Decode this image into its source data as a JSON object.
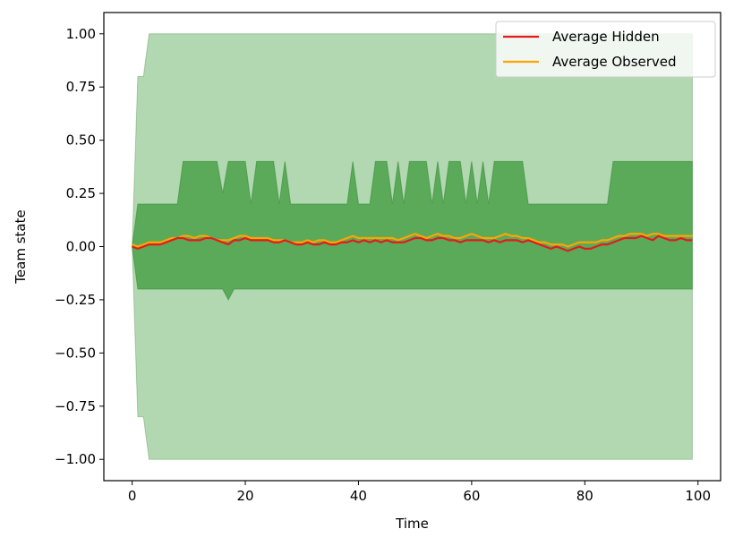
{
  "chart_data": {
    "type": "line",
    "title": "",
    "xlabel": "Time",
    "ylabel": "Team state",
    "xlim": [
      -5,
      104
    ],
    "ylim": [
      -1.1,
      1.1
    ],
    "xticks": [
      0,
      20,
      40,
      60,
      80,
      100
    ],
    "xtick_labels": [
      "0",
      "20",
      "40",
      "60",
      "80",
      "100"
    ],
    "yticks": [
      1.0,
      0.75,
      0.5,
      0.25,
      0.0,
      -0.25,
      -0.5,
      -0.75,
      -1.0
    ],
    "ytick_labels": [
      "1.00",
      "0.75",
      "0.50",
      "0.25",
      "0.00",
      "−0.25",
      "−0.50",
      "−0.75",
      "−1.00"
    ],
    "grid": false,
    "legend_position": "top-right",
    "colors": {
      "hidden": "#e41a1c",
      "observed": "#ffa500",
      "outer_band": "#b2d8b2",
      "inner_band": "#5aaa5a",
      "band_edge": "#3a8a3a"
    },
    "bands": [
      {
        "role": "outer",
        "x": [
          0,
          1,
          2,
          3,
          4,
          99
        ],
        "upper": [
          0.0,
          0.8,
          0.8,
          1.0,
          1.0,
          1.0
        ],
        "lower": [
          0.0,
          -0.8,
          -0.8,
          -1.0,
          -1.0,
          -1.0
        ]
      },
      {
        "role": "inner",
        "x": [
          0,
          1,
          2,
          3,
          4,
          5,
          6,
          7,
          8,
          9,
          10,
          11,
          12,
          13,
          14,
          15,
          16,
          17,
          18,
          19,
          20,
          21,
          22,
          23,
          24,
          25,
          26,
          27,
          28,
          29,
          30,
          31,
          32,
          33,
          34,
          35,
          36,
          37,
          38,
          39,
          40,
          41,
          42,
          43,
          44,
          45,
          46,
          47,
          48,
          49,
          50,
          51,
          52,
          53,
          54,
          55,
          56,
          57,
          58,
          59,
          60,
          61,
          62,
          63,
          64,
          65,
          66,
          67,
          68,
          69,
          70,
          71,
          72,
          73,
          74,
          75,
          76,
          77,
          78,
          79,
          80,
          81,
          82,
          83,
          84,
          85,
          86,
          87,
          88,
          89,
          90,
          91,
          92,
          93,
          94,
          95,
          96,
          97,
          98,
          99
        ],
        "upper": [
          0.0,
          0.2,
          0.2,
          0.2,
          0.2,
          0.2,
          0.2,
          0.2,
          0.2,
          0.4,
          0.4,
          0.4,
          0.4,
          0.4,
          0.4,
          0.4,
          0.25,
          0.4,
          0.4,
          0.4,
          0.4,
          0.2,
          0.4,
          0.4,
          0.4,
          0.4,
          0.2,
          0.4,
          0.2,
          0.2,
          0.2,
          0.2,
          0.2,
          0.2,
          0.2,
          0.2,
          0.2,
          0.2,
          0.2,
          0.4,
          0.2,
          0.2,
          0.2,
          0.4,
          0.4,
          0.4,
          0.2,
          0.4,
          0.2,
          0.4,
          0.4,
          0.4,
          0.4,
          0.2,
          0.4,
          0.2,
          0.4,
          0.4,
          0.4,
          0.2,
          0.4,
          0.2,
          0.4,
          0.2,
          0.4,
          0.4,
          0.4,
          0.4,
          0.4,
          0.4,
          0.2,
          0.2,
          0.2,
          0.2,
          0.2,
          0.2,
          0.2,
          0.2,
          0.2,
          0.2,
          0.2,
          0.2,
          0.2,
          0.2,
          0.2,
          0.4,
          0.4,
          0.4,
          0.4,
          0.4,
          0.4,
          0.4,
          0.4,
          0.4,
          0.4,
          0.4,
          0.4,
          0.4,
          0.4,
          0.4
        ],
        "lower": [
          0.0,
          -0.2,
          -0.2,
          -0.2,
          -0.2,
          -0.2,
          -0.2,
          -0.2,
          -0.2,
          -0.2,
          -0.2,
          -0.2,
          -0.2,
          -0.2,
          -0.2,
          -0.2,
          -0.2,
          -0.25,
          -0.2,
          -0.2,
          -0.2,
          -0.2,
          -0.2,
          -0.2,
          -0.2,
          -0.2,
          -0.2,
          -0.2,
          -0.2,
          -0.2,
          -0.2,
          -0.2,
          -0.2,
          -0.2,
          -0.2,
          -0.2,
          -0.2,
          -0.2,
          -0.2,
          -0.2,
          -0.2,
          -0.2,
          -0.2,
          -0.2,
          -0.2,
          -0.2,
          -0.2,
          -0.2,
          -0.2,
          -0.2,
          -0.2,
          -0.2,
          -0.2,
          -0.2,
          -0.2,
          -0.2,
          -0.2,
          -0.2,
          -0.2,
          -0.2,
          -0.2,
          -0.2,
          -0.2,
          -0.2,
          -0.2,
          -0.2,
          -0.2,
          -0.2,
          -0.2,
          -0.2,
          -0.2,
          -0.2,
          -0.2,
          -0.2,
          -0.2,
          -0.2,
          -0.2,
          -0.2,
          -0.2,
          -0.2,
          -0.2,
          -0.2,
          -0.2,
          -0.2,
          -0.2,
          -0.2,
          -0.2,
          -0.2,
          -0.2,
          -0.2,
          -0.2,
          -0.2,
          -0.2,
          -0.2,
          -0.2,
          -0.2,
          -0.2,
          -0.2,
          -0.2,
          -0.2
        ]
      }
    ],
    "series": [
      {
        "name": "Average Hidden",
        "x": [
          0,
          1,
          2,
          3,
          4,
          5,
          6,
          7,
          8,
          9,
          10,
          11,
          12,
          13,
          14,
          15,
          16,
          17,
          18,
          19,
          20,
          21,
          22,
          23,
          24,
          25,
          26,
          27,
          28,
          29,
          30,
          31,
          32,
          33,
          34,
          35,
          36,
          37,
          38,
          39,
          40,
          41,
          42,
          43,
          44,
          45,
          46,
          47,
          48,
          49,
          50,
          51,
          52,
          53,
          54,
          55,
          56,
          57,
          58,
          59,
          60,
          61,
          62,
          63,
          64,
          65,
          66,
          67,
          68,
          69,
          70,
          71,
          72,
          73,
          74,
          75,
          76,
          77,
          78,
          79,
          80,
          81,
          82,
          83,
          84,
          85,
          86,
          87,
          88,
          89,
          90,
          91,
          92,
          93,
          94,
          95,
          96,
          97,
          98,
          99
        ],
        "values": [
          0.0,
          -0.01,
          0.0,
          0.01,
          0.01,
          0.01,
          0.02,
          0.03,
          0.04,
          0.04,
          0.03,
          0.03,
          0.03,
          0.04,
          0.04,
          0.03,
          0.02,
          0.01,
          0.03,
          0.03,
          0.04,
          0.03,
          0.03,
          0.03,
          0.03,
          0.02,
          0.02,
          0.03,
          0.02,
          0.01,
          0.01,
          0.02,
          0.01,
          0.01,
          0.02,
          0.01,
          0.01,
          0.02,
          0.02,
          0.03,
          0.02,
          0.03,
          0.02,
          0.03,
          0.02,
          0.03,
          0.02,
          0.02,
          0.02,
          0.03,
          0.04,
          0.04,
          0.03,
          0.03,
          0.04,
          0.04,
          0.03,
          0.03,
          0.02,
          0.03,
          0.03,
          0.03,
          0.03,
          0.02,
          0.03,
          0.02,
          0.03,
          0.03,
          0.03,
          0.02,
          0.03,
          0.02,
          0.01,
          0.0,
          -0.01,
          0.0,
          -0.01,
          -0.02,
          -0.01,
          0.0,
          -0.01,
          -0.01,
          0.0,
          0.01,
          0.01,
          0.02,
          0.03,
          0.04,
          0.04,
          0.04,
          0.05,
          0.04,
          0.03,
          0.05,
          0.04,
          0.03,
          0.03,
          0.04,
          0.03,
          0.03
        ]
      },
      {
        "name": "Average Observed",
        "x": [
          0,
          1,
          2,
          3,
          4,
          5,
          6,
          7,
          8,
          9,
          10,
          11,
          12,
          13,
          14,
          15,
          16,
          17,
          18,
          19,
          20,
          21,
          22,
          23,
          24,
          25,
          26,
          27,
          28,
          29,
          30,
          31,
          32,
          33,
          34,
          35,
          36,
          37,
          38,
          39,
          40,
          41,
          42,
          43,
          44,
          45,
          46,
          47,
          48,
          49,
          50,
          51,
          52,
          53,
          54,
          55,
          56,
          57,
          58,
          59,
          60,
          61,
          62,
          63,
          64,
          65,
          66,
          67,
          68,
          69,
          70,
          71,
          72,
          73,
          74,
          75,
          76,
          77,
          78,
          79,
          80,
          81,
          82,
          83,
          84,
          85,
          86,
          87,
          88,
          89,
          90,
          91,
          92,
          93,
          94,
          95,
          96,
          97,
          98,
          99
        ],
        "values": [
          0.01,
          0.0,
          0.01,
          0.02,
          0.02,
          0.02,
          0.03,
          0.04,
          0.04,
          0.05,
          0.05,
          0.04,
          0.05,
          0.05,
          0.04,
          0.03,
          0.03,
          0.03,
          0.04,
          0.05,
          0.05,
          0.04,
          0.04,
          0.04,
          0.04,
          0.03,
          0.03,
          0.03,
          0.02,
          0.02,
          0.02,
          0.03,
          0.02,
          0.03,
          0.03,
          0.02,
          0.02,
          0.03,
          0.04,
          0.05,
          0.04,
          0.04,
          0.04,
          0.04,
          0.04,
          0.04,
          0.04,
          0.03,
          0.04,
          0.05,
          0.06,
          0.05,
          0.04,
          0.05,
          0.06,
          0.05,
          0.05,
          0.04,
          0.04,
          0.05,
          0.06,
          0.05,
          0.04,
          0.04,
          0.04,
          0.05,
          0.06,
          0.05,
          0.05,
          0.04,
          0.04,
          0.03,
          0.02,
          0.02,
          0.01,
          0.01,
          0.01,
          0.0,
          0.01,
          0.02,
          0.02,
          0.02,
          0.02,
          0.03,
          0.03,
          0.04,
          0.05,
          0.05,
          0.06,
          0.06,
          0.06,
          0.05,
          0.06,
          0.06,
          0.05,
          0.05,
          0.05,
          0.05,
          0.05,
          0.05
        ]
      }
    ]
  }
}
